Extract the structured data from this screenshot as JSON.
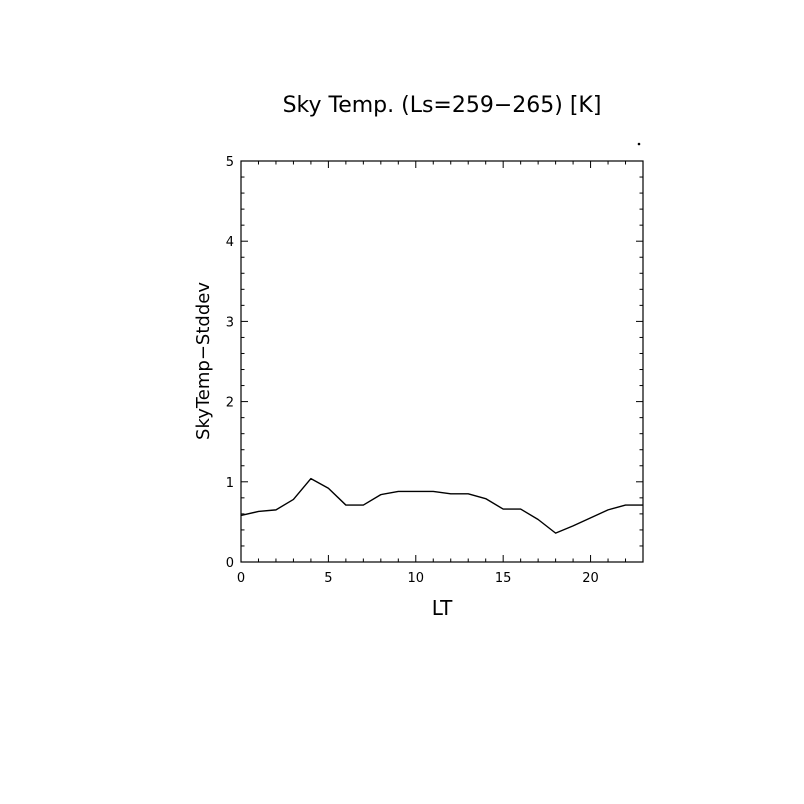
{
  "chart_data": {
    "type": "line",
    "title": "Sky Temp. (Ls=259−265) [K]",
    "xlabel": "LT",
    "ylabel": "SkyTemp−Stddev",
    "xlim": [
      0,
      23
    ],
    "ylim": [
      0,
      5
    ],
    "x_ticks": [
      0,
      5,
      10,
      15,
      20
    ],
    "y_ticks": [
      0,
      1,
      2,
      3,
      4,
      5
    ],
    "x_tick_labels": [
      "0",
      "5",
      "10",
      "15",
      "20"
    ],
    "y_tick_labels": [
      "0",
      "1",
      "2",
      "3",
      "4",
      "5"
    ],
    "x_minor_step": 1,
    "y_minor_step": 0.2,
    "grid": false,
    "series": [
      {
        "color": "#000000",
        "x": [
          0,
          1,
          2,
          3,
          4,
          5,
          6,
          7,
          8,
          9,
          10,
          11,
          12,
          13,
          14,
          15,
          16,
          17,
          18,
          19,
          20,
          21,
          22,
          23
        ],
        "y": [
          0.58,
          0.63,
          0.65,
          0.78,
          1.04,
          0.92,
          0.71,
          0.71,
          0.84,
          0.88,
          0.88,
          0.88,
          0.85,
          0.85,
          0.79,
          0.66,
          0.66,
          0.53,
          0.36,
          0.45,
          0.55,
          0.65,
          0.71,
          0.71
        ]
      }
    ]
  }
}
